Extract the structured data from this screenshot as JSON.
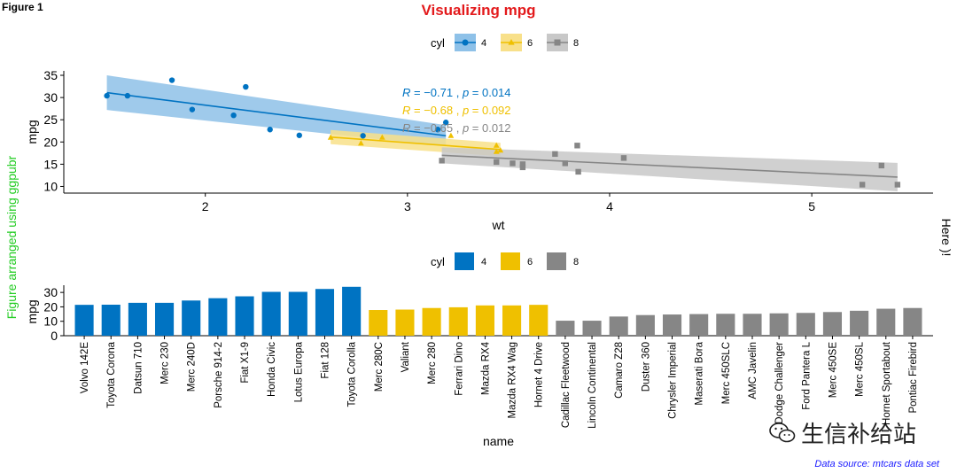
{
  "figure_label": "Figure 1",
  "title": "Visualizing mpg",
  "left_caption": "Figure arranged using ggpubr",
  "right_caption": "Here )!",
  "data_source": "Data source: mtcars data set",
  "watermark": "生信补给站",
  "colors": {
    "cyl4": "#0073C2",
    "cyl6": "#EFC000",
    "cyl8": "#868686",
    "title": "#e31a1c",
    "band4": "#8ec1e8",
    "band6": "#f8e08a",
    "band8": "#c8c8c8"
  },
  "chart_data": [
    {
      "type": "scatter",
      "xlabel": "wt",
      "ylabel": "mpg",
      "xlim": [
        1.3,
        5.6
      ],
      "ylim": [
        8.5,
        36
      ],
      "xticks": [
        2,
        3,
        4,
        5
      ],
      "yticks": [
        10,
        15,
        20,
        25,
        30,
        35
      ],
      "legend": {
        "title": "cyl",
        "position": "top",
        "labels": [
          "4",
          "6",
          "8"
        ]
      },
      "series": [
        {
          "name": "4",
          "color_key": "cyl4",
          "shape": "circle",
          "x": [
            1.513,
            1.615,
            1.835,
            1.935,
            2.14,
            2.2,
            2.32,
            2.465,
            2.78,
            3.15,
            3.19
          ],
          "y": [
            30.4,
            30.4,
            33.9,
            27.3,
            26.0,
            32.4,
            22.8,
            21.5,
            21.4,
            22.8,
            24.4
          ],
          "fit": {
            "x": [
              1.513,
              3.19
            ],
            "y": [
              31.1,
              21.4
            ],
            "band_low": [
              27.2,
              19.0
            ],
            "band_high": [
              35.0,
              23.8
            ]
          },
          "annotation": "R = −0.71 , p = 0.014"
        },
        {
          "name": "6",
          "color_key": "cyl6",
          "shape": "triangle",
          "x": [
            2.62,
            2.77,
            2.875,
            3.215,
            3.44,
            3.44,
            3.46
          ],
          "y": [
            21.0,
            19.7,
            21.0,
            21.4,
            19.2,
            17.8,
            18.1
          ],
          "fit": {
            "x": [
              2.62,
              3.46
            ],
            "y": [
              21.1,
              18.3
            ],
            "band_low": [
              19.5,
              16.8
            ],
            "band_high": [
              22.7,
              19.8
            ]
          },
          "annotation": "R = −0.68 , p = 0.092"
        },
        {
          "name": "8",
          "color_key": "cyl8",
          "shape": "square",
          "x": [
            3.17,
            3.44,
            3.52,
            3.57,
            3.57,
            3.73,
            3.78,
            3.84,
            3.845,
            4.07,
            5.25,
            5.345,
            5.424
          ],
          "y": [
            15.8,
            15.5,
            15.2,
            14.3,
            15.0,
            17.3,
            15.2,
            19.2,
            13.3,
            16.4,
            10.4,
            14.7,
            10.4
          ],
          "fit": {
            "x": [
              3.17,
              5.424
            ],
            "y": [
              17.0,
              12.1
            ],
            "band_low": [
              15.2,
              8.9
            ],
            "band_high": [
              18.8,
              15.3
            ]
          },
          "annotation": "R = −0.65 , p = 0.012"
        }
      ]
    },
    {
      "type": "bar",
      "xlabel": "name",
      "ylabel": "mpg",
      "ylim": [
        0,
        35
      ],
      "yticks": [
        0,
        10,
        20,
        30
      ],
      "legend": {
        "title": "cyl",
        "position": "top",
        "labels": [
          "4",
          "6",
          "8"
        ]
      },
      "categories": [
        "Volvo 142E",
        "Toyota Corona",
        "Datsun 710",
        "Merc 230",
        "Merc 240D",
        "Porsche 914-2",
        "Fiat X1-9",
        "Honda Civic",
        "Lotus Europa",
        "Fiat 128",
        "Toyota Corolla",
        "Merc 280C",
        "Valiant",
        "Merc 280",
        "Ferrari Dino",
        "Mazda RX4",
        "Mazda RX4 Wag",
        "Hornet 4 Drive",
        "Cadillac Fleetwood",
        "Lincoln Continental",
        "Camaro Z28",
        "Duster 360",
        "Chrysler Imperial",
        "Maserati Bora",
        "Merc 450SLC",
        "AMC Javelin",
        "Dodge Challenger",
        "Ford Pantera L",
        "Merc 450SE",
        "Merc 450SL",
        "Hornet Sportabout",
        "Pontiac Firebird"
      ],
      "values": [
        21.4,
        21.5,
        22.8,
        22.8,
        24.4,
        26.0,
        27.3,
        30.4,
        30.4,
        32.4,
        33.9,
        17.8,
        18.1,
        19.2,
        19.7,
        21.0,
        21.0,
        21.4,
        10.4,
        10.4,
        13.3,
        14.3,
        14.7,
        15.0,
        15.2,
        15.2,
        15.5,
        15.8,
        16.4,
        17.3,
        18.7,
        19.2
      ],
      "groups": [
        "4",
        "4",
        "4",
        "4",
        "4",
        "4",
        "4",
        "4",
        "4",
        "4",
        "4",
        "6",
        "6",
        "6",
        "6",
        "6",
        "6",
        "6",
        "8",
        "8",
        "8",
        "8",
        "8",
        "8",
        "8",
        "8",
        "8",
        "8",
        "8",
        "8",
        "8",
        "8"
      ]
    }
  ]
}
